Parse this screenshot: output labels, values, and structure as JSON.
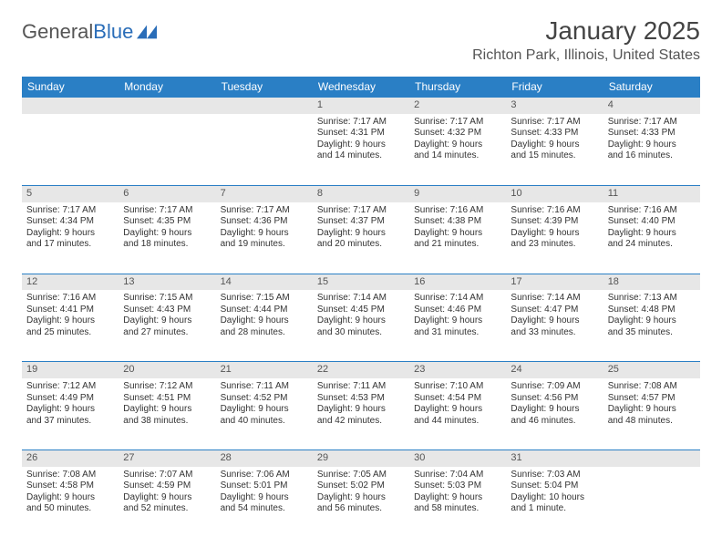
{
  "logo": {
    "text_a": "General",
    "text_b": "Blue"
  },
  "header": {
    "title": "January 2025",
    "location": "Richton Park, Illinois, United States"
  },
  "colors": {
    "header_bg": "#2a7fc5",
    "header_text": "#ffffff",
    "daynum_bg": "#e7e7e7",
    "divider": "#2a7fc5",
    "page_bg": "#ffffff",
    "text": "#333333",
    "logo_gray": "#555555",
    "logo_blue": "#2a6db8"
  },
  "day_headers": [
    "Sunday",
    "Monday",
    "Tuesday",
    "Wednesday",
    "Thursday",
    "Friday",
    "Saturday"
  ],
  "weeks": [
    {
      "nums": [
        "",
        "",
        "",
        "1",
        "2",
        "3",
        "4"
      ],
      "cells": [
        "",
        "",
        "",
        "Sunrise: 7:17 AM\nSunset: 4:31 PM\nDaylight: 9 hours\nand 14 minutes.",
        "Sunrise: 7:17 AM\nSunset: 4:32 PM\nDaylight: 9 hours\nand 14 minutes.",
        "Sunrise: 7:17 AM\nSunset: 4:33 PM\nDaylight: 9 hours\nand 15 minutes.",
        "Sunrise: 7:17 AM\nSunset: 4:33 PM\nDaylight: 9 hours\nand 16 minutes."
      ]
    },
    {
      "nums": [
        "5",
        "6",
        "7",
        "8",
        "9",
        "10",
        "11"
      ],
      "cells": [
        "Sunrise: 7:17 AM\nSunset: 4:34 PM\nDaylight: 9 hours\nand 17 minutes.",
        "Sunrise: 7:17 AM\nSunset: 4:35 PM\nDaylight: 9 hours\nand 18 minutes.",
        "Sunrise: 7:17 AM\nSunset: 4:36 PM\nDaylight: 9 hours\nand 19 minutes.",
        "Sunrise: 7:17 AM\nSunset: 4:37 PM\nDaylight: 9 hours\nand 20 minutes.",
        "Sunrise: 7:16 AM\nSunset: 4:38 PM\nDaylight: 9 hours\nand 21 minutes.",
        "Sunrise: 7:16 AM\nSunset: 4:39 PM\nDaylight: 9 hours\nand 23 minutes.",
        "Sunrise: 7:16 AM\nSunset: 4:40 PM\nDaylight: 9 hours\nand 24 minutes."
      ]
    },
    {
      "nums": [
        "12",
        "13",
        "14",
        "15",
        "16",
        "17",
        "18"
      ],
      "cells": [
        "Sunrise: 7:16 AM\nSunset: 4:41 PM\nDaylight: 9 hours\nand 25 minutes.",
        "Sunrise: 7:15 AM\nSunset: 4:43 PM\nDaylight: 9 hours\nand 27 minutes.",
        "Sunrise: 7:15 AM\nSunset: 4:44 PM\nDaylight: 9 hours\nand 28 minutes.",
        "Sunrise: 7:14 AM\nSunset: 4:45 PM\nDaylight: 9 hours\nand 30 minutes.",
        "Sunrise: 7:14 AM\nSunset: 4:46 PM\nDaylight: 9 hours\nand 31 minutes.",
        "Sunrise: 7:14 AM\nSunset: 4:47 PM\nDaylight: 9 hours\nand 33 minutes.",
        "Sunrise: 7:13 AM\nSunset: 4:48 PM\nDaylight: 9 hours\nand 35 minutes."
      ]
    },
    {
      "nums": [
        "19",
        "20",
        "21",
        "22",
        "23",
        "24",
        "25"
      ],
      "cells": [
        "Sunrise: 7:12 AM\nSunset: 4:49 PM\nDaylight: 9 hours\nand 37 minutes.",
        "Sunrise: 7:12 AM\nSunset: 4:51 PM\nDaylight: 9 hours\nand 38 minutes.",
        "Sunrise: 7:11 AM\nSunset: 4:52 PM\nDaylight: 9 hours\nand 40 minutes.",
        "Sunrise: 7:11 AM\nSunset: 4:53 PM\nDaylight: 9 hours\nand 42 minutes.",
        "Sunrise: 7:10 AM\nSunset: 4:54 PM\nDaylight: 9 hours\nand 44 minutes.",
        "Sunrise: 7:09 AM\nSunset: 4:56 PM\nDaylight: 9 hours\nand 46 minutes.",
        "Sunrise: 7:08 AM\nSunset: 4:57 PM\nDaylight: 9 hours\nand 48 minutes."
      ]
    },
    {
      "nums": [
        "26",
        "27",
        "28",
        "29",
        "30",
        "31",
        ""
      ],
      "cells": [
        "Sunrise: 7:08 AM\nSunset: 4:58 PM\nDaylight: 9 hours\nand 50 minutes.",
        "Sunrise: 7:07 AM\nSunset: 4:59 PM\nDaylight: 9 hours\nand 52 minutes.",
        "Sunrise: 7:06 AM\nSunset: 5:01 PM\nDaylight: 9 hours\nand 54 minutes.",
        "Sunrise: 7:05 AM\nSunset: 5:02 PM\nDaylight: 9 hours\nand 56 minutes.",
        "Sunrise: 7:04 AM\nSunset: 5:03 PM\nDaylight: 9 hours\nand 58 minutes.",
        "Sunrise: 7:03 AM\nSunset: 5:04 PM\nDaylight: 10 hours\nand 1 minute.",
        ""
      ]
    }
  ]
}
